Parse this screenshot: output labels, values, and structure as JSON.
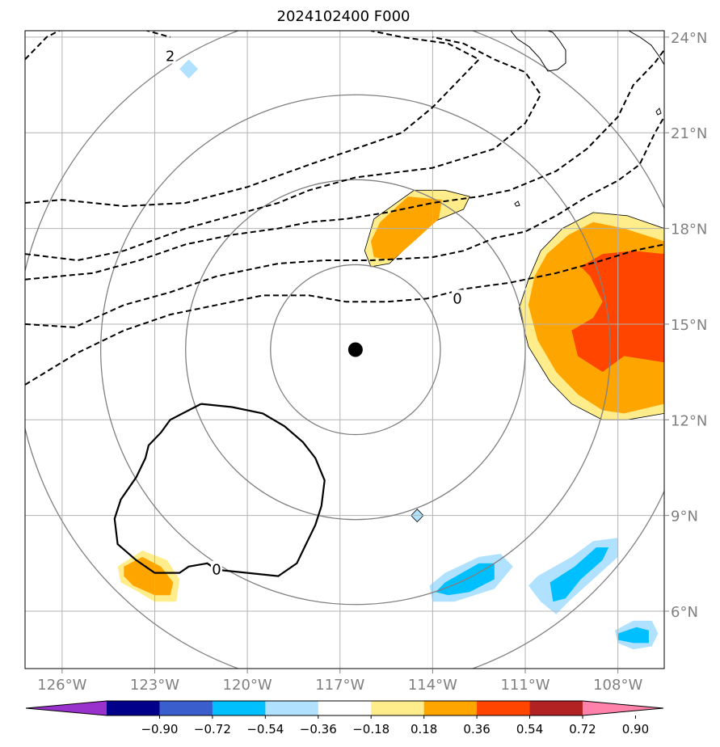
{
  "chart_data": {
    "type": "heatmap",
    "title": "2024102400 F000",
    "projection": "lon-lat map, storm-centered",
    "xlim": [
      -127.2,
      -106.5
    ],
    "ylim": [
      4.2,
      24.2
    ],
    "x_ticks": [
      -126,
      -123,
      -120,
      -117,
      -114,
      -111,
      -108
    ],
    "x_tick_labels": [
      "126°W",
      "123°W",
      "120°W",
      "117°W",
      "114°W",
      "111°W",
      "108°W"
    ],
    "y_ticks": [
      6,
      9,
      12,
      15,
      18,
      21,
      24
    ],
    "y_tick_labels": [
      "6°N",
      "9°N",
      "12°N",
      "15°N",
      "18°N",
      "21°N",
      "24°N"
    ],
    "grid": true,
    "center": {
      "lon": -116.5,
      "lat": 14.2
    },
    "range_rings_deg": [
      2.75,
      5.5,
      8.25,
      11.0
    ],
    "contour_labels": [
      {
        "text": "2",
        "lon": -122.5,
        "lat": 23.4
      },
      {
        "text": "0",
        "lon": -113.2,
        "lat": 15.8
      },
      {
        "text": "0",
        "lon": -121.0,
        "lat": 7.3
      }
    ],
    "dashed_contours": [
      [
        [
          -127.2,
          23.3
        ],
        [
          -126.5,
          24.0
        ],
        [
          -125.5,
          24.5
        ],
        [
          -124.5,
          24.5
        ],
        [
          -123.6,
          24.3
        ],
        [
          -122.5,
          24.0
        ]
      ],
      [
        [
          -127.2,
          18.8
        ],
        [
          -126,
          18.9
        ],
        [
          -124,
          18.7
        ],
        [
          -122,
          18.8
        ],
        [
          -120,
          19.3
        ],
        [
          -118,
          20.0
        ],
        [
          -116.5,
          20.5
        ],
        [
          -115,
          21.0
        ],
        [
          -114,
          21.8
        ],
        [
          -113,
          22.8
        ],
        [
          -112.5,
          23.3
        ],
        [
          -113.5,
          23.8
        ],
        [
          -115,
          24.0
        ],
        [
          -116,
          24.2
        ]
      ],
      [
        [
          -127.2,
          17.2
        ],
        [
          -125.5,
          17.0
        ],
        [
          -124,
          17.3
        ],
        [
          -122,
          18.0
        ],
        [
          -120.5,
          18.4
        ],
        [
          -119,
          18.8
        ],
        [
          -118,
          19.2
        ],
        [
          -116.5,
          19.6
        ],
        [
          -114,
          19.9
        ],
        [
          -112,
          20.5
        ],
        [
          -111,
          21.3
        ],
        [
          -110.5,
          22.2
        ],
        [
          -111,
          22.9
        ],
        [
          -112,
          23.3
        ],
        [
          -113,
          23.8
        ],
        [
          -114,
          24.0
        ]
      ],
      [
        [
          -127.2,
          16.4
        ],
        [
          -125,
          16.6
        ],
        [
          -123.5,
          17.0
        ],
        [
          -122,
          17.5
        ],
        [
          -120.5,
          17.8
        ],
        [
          -119,
          18.0
        ],
        [
          -118,
          18.2
        ],
        [
          -116.8,
          18.3
        ],
        [
          -115.5,
          18.5
        ],
        [
          -114,
          18.8
        ],
        [
          -112.5,
          19.0
        ],
        [
          -111.5,
          19.2
        ],
        [
          -110,
          19.8
        ],
        [
          -109,
          20.5
        ],
        [
          -108,
          21.5
        ],
        [
          -107.5,
          22.5
        ],
        [
          -106.8,
          23.2
        ],
        [
          -106.5,
          23.6
        ]
      ],
      [
        [
          -127.2,
          15.0
        ],
        [
          -125.6,
          14.9
        ],
        [
          -124,
          15.6
        ],
        [
          -122.5,
          16.0
        ],
        [
          -121,
          16.5
        ],
        [
          -119,
          16.9
        ],
        [
          -117.5,
          17.0
        ],
        [
          -116,
          17.0
        ],
        [
          -114,
          17.1
        ],
        [
          -113,
          17.3
        ],
        [
          -112,
          17.7
        ],
        [
          -111,
          17.9
        ],
        [
          -110,
          18.4
        ],
        [
          -109,
          19.0
        ],
        [
          -108,
          19.5
        ],
        [
          -107.3,
          20.0
        ],
        [
          -106.8,
          21.0
        ],
        [
          -106.5,
          21.5
        ]
      ],
      [
        [
          -127.2,
          13.1
        ],
        [
          -125.5,
          14.1
        ],
        [
          -124,
          14.8
        ],
        [
          -122.5,
          15.3
        ],
        [
          -121,
          15.6
        ],
        [
          -119.5,
          15.9
        ],
        [
          -118,
          15.9
        ],
        [
          -116.8,
          15.7
        ],
        [
          -115.5,
          15.7
        ],
        [
          -114.2,
          15.8
        ],
        [
          -113,
          16.1
        ],
        [
          -111.5,
          16.3
        ],
        [
          -110,
          16.6
        ],
        [
          -108.5,
          17.0
        ],
        [
          -107.5,
          17.3
        ],
        [
          -106.5,
          17.5
        ]
      ]
    ],
    "solid_contour": [
      [
        -121.5,
        12.5
      ],
      [
        -120.5,
        12.4
      ],
      [
        -119.5,
        12.2
      ],
      [
        -118.8,
        11.8
      ],
      [
        -118.2,
        11.3
      ],
      [
        -117.8,
        10.8
      ],
      [
        -117.5,
        10.1
      ],
      [
        -117.6,
        9.3
      ],
      [
        -117.8,
        8.7
      ],
      [
        -118.1,
        8.1
      ],
      [
        -118.4,
        7.5
      ],
      [
        -119.0,
        7.1
      ],
      [
        -120.0,
        7.2
      ],
      [
        -121.0,
        7.3
      ],
      [
        -121.3,
        7.5
      ],
      [
        -121.9,
        7.4
      ],
      [
        -122.2,
        7.2
      ],
      [
        -123.0,
        7.2
      ],
      [
        -123.6,
        7.6
      ],
      [
        -124.2,
        8.1
      ],
      [
        -124.3,
        8.9
      ],
      [
        -124.1,
        9.5
      ],
      [
        -123.6,
        10.2
      ],
      [
        -123.3,
        10.8
      ],
      [
        -123.2,
        11.2
      ],
      [
        -122.8,
        11.6
      ],
      [
        -122.5,
        12.0
      ],
      [
        -121.5,
        12.5
      ]
    ],
    "shaded_regions": [
      {
        "level": 0.18,
        "points": [
          [
            -115.9,
            18.3
          ],
          [
            -114.6,
            19.2
          ],
          [
            -113.6,
            19.2
          ],
          [
            -112.8,
            19.0
          ],
          [
            -113.0,
            18.6
          ],
          [
            -114.0,
            18.2
          ],
          [
            -115.4,
            16.9
          ],
          [
            -116.0,
            16.8
          ],
          [
            -116.2,
            17.3
          ]
        ]
      },
      {
        "level": 0.36,
        "points": [
          [
            -115.7,
            18.2
          ],
          [
            -114.8,
            19.0
          ],
          [
            -113.7,
            18.9
          ],
          [
            -113.8,
            18.3
          ],
          [
            -114.6,
            17.6
          ],
          [
            -115.3,
            17.0
          ],
          [
            -115.9,
            17.1
          ],
          [
            -116.0,
            17.6
          ]
        ]
      },
      {
        "level": 0.18,
        "points": [
          [
            -108.8,
            18.5
          ],
          [
            -107.7,
            18.4
          ],
          [
            -106.5,
            18.0
          ],
          [
            -106.5,
            12.2
          ],
          [
            -107.7,
            12.0
          ],
          [
            -108.5,
            12.0
          ],
          [
            -109.5,
            12.5
          ],
          [
            -110.2,
            13.2
          ],
          [
            -110.9,
            14.3
          ],
          [
            -111.2,
            15.5
          ],
          [
            -110.9,
            16.4
          ],
          [
            -110.5,
            17.3
          ],
          [
            -109.8,
            18.0
          ]
        ]
      },
      {
        "level": 0.36,
        "points": [
          [
            -108.8,
            18.2
          ],
          [
            -107.8,
            18.0
          ],
          [
            -106.5,
            17.6
          ],
          [
            -106.5,
            12.5
          ],
          [
            -107.8,
            12.2
          ],
          [
            -108.5,
            12.3
          ],
          [
            -109.3,
            12.8
          ],
          [
            -110.0,
            13.5
          ],
          [
            -110.6,
            14.5
          ],
          [
            -110.9,
            15.6
          ],
          [
            -110.7,
            16.5
          ],
          [
            -110.3,
            17.2
          ],
          [
            -109.6,
            17.8
          ]
        ]
      },
      {
        "level": 0.54,
        "points": [
          [
            -108.5,
            17.2
          ],
          [
            -107.5,
            17.3
          ],
          [
            -106.5,
            17.2
          ],
          [
            -106.5,
            13.8
          ],
          [
            -107.8,
            14.0
          ],
          [
            -108.5,
            13.5
          ],
          [
            -109.3,
            14.0
          ],
          [
            -109.5,
            14.8
          ],
          [
            -108.8,
            15.2
          ],
          [
            -108.5,
            15.7
          ],
          [
            -108.9,
            16.5
          ],
          [
            -109.2,
            16.8
          ]
        ]
      },
      {
        "level": 0.18,
        "points": [
          [
            -123.4,
            7.9
          ],
          [
            -122.6,
            7.6
          ],
          [
            -122.2,
            7.0
          ],
          [
            -122.3,
            6.3
          ],
          [
            -123.0,
            6.3
          ],
          [
            -123.7,
            6.7
          ],
          [
            -124.1,
            6.9
          ],
          [
            -124.2,
            7.4
          ]
        ]
      },
      {
        "level": 0.36,
        "points": [
          [
            -123.4,
            7.7
          ],
          [
            -122.8,
            7.4
          ],
          [
            -122.4,
            6.9
          ],
          [
            -122.5,
            6.5
          ],
          [
            -123.0,
            6.5
          ],
          [
            -123.7,
            6.8
          ],
          [
            -124.0,
            7.1
          ],
          [
            -124.0,
            7.4
          ]
        ]
      },
      {
        "level": -0.18,
        "points": [
          [
            -113.6,
            7.2
          ],
          [
            -112.5,
            7.7
          ],
          [
            -111.8,
            7.8
          ],
          [
            -111.4,
            7.4
          ],
          [
            -112.0,
            6.7
          ],
          [
            -113.3,
            6.3
          ],
          [
            -114.0,
            6.3
          ],
          [
            -114.1,
            6.8
          ]
        ]
      },
      {
        "level": -0.36,
        "points": [
          [
            -113.6,
            6.9
          ],
          [
            -112.5,
            7.5
          ],
          [
            -112.0,
            7.5
          ],
          [
            -112.0,
            7.0
          ],
          [
            -112.8,
            6.6
          ],
          [
            -113.5,
            6.5
          ],
          [
            -113.9,
            6.6
          ]
        ]
      },
      {
        "level": -0.18,
        "points": [
          [
            -110.6,
            7.1
          ],
          [
            -109.5,
            7.7
          ],
          [
            -108.8,
            8.2
          ],
          [
            -108.0,
            8.3
          ],
          [
            -108.0,
            7.7
          ],
          [
            -108.8,
            7.0
          ],
          [
            -109.6,
            6.3
          ],
          [
            -110.0,
            5.9
          ],
          [
            -110.5,
            6.3
          ],
          [
            -110.9,
            6.8
          ]
        ]
      },
      {
        "level": -0.36,
        "points": [
          [
            -110.2,
            6.9
          ],
          [
            -109.4,
            7.4
          ],
          [
            -108.7,
            8.0
          ],
          [
            -108.3,
            8.0
          ],
          [
            -108.5,
            7.6
          ],
          [
            -109.2,
            7.0
          ],
          [
            -109.7,
            6.4
          ],
          [
            -110.1,
            6.3
          ]
        ]
      },
      {
        "level": -0.18,
        "points": [
          [
            -108.1,
            5.4
          ],
          [
            -107.5,
            5.7
          ],
          [
            -106.9,
            5.7
          ],
          [
            -106.7,
            5.3
          ],
          [
            -106.9,
            4.9
          ],
          [
            -107.5,
            4.8
          ],
          [
            -108.0,
            5.0
          ]
        ]
      },
      {
        "level": -0.36,
        "points": [
          [
            -108.0,
            5.3
          ],
          [
            -107.4,
            5.5
          ],
          [
            -107.0,
            5.4
          ],
          [
            -107.0,
            5.0
          ],
          [
            -107.5,
            5.0
          ],
          [
            -108.0,
            5.1
          ]
        ]
      },
      {
        "level": -0.18,
        "points": [
          [
            -122.2,
            23.0
          ],
          [
            -121.9,
            23.3
          ],
          [
            -121.6,
            23.0
          ],
          [
            -121.9,
            22.7
          ]
        ]
      },
      {
        "level": -0.18,
        "points": [
          [
            -114.5,
            9.2
          ],
          [
            -114.3,
            9.0
          ],
          [
            -114.5,
            8.8
          ],
          [
            -114.7,
            9.0
          ]
        ]
      }
    ],
    "colorbar": {
      "ticks": [
        -0.9,
        -0.72,
        -0.54,
        -0.36,
        -0.18,
        0.18,
        0.36,
        0.54,
        0.72,
        0.9
      ],
      "tick_labels": [
        "−0.90",
        "−0.72",
        "−0.54",
        "−0.36",
        "−0.18",
        "0.18",
        "0.36",
        "0.54",
        "0.72",
        "0.90"
      ],
      "colors": [
        "#9932cc",
        "#00008b",
        "#3a5fcd",
        "#00bfff",
        "#b0e2ff",
        "#ffffff",
        "#ffec8b",
        "#ffa500",
        "#ff4500",
        "#b22222",
        "#ff82ab"
      ]
    }
  }
}
